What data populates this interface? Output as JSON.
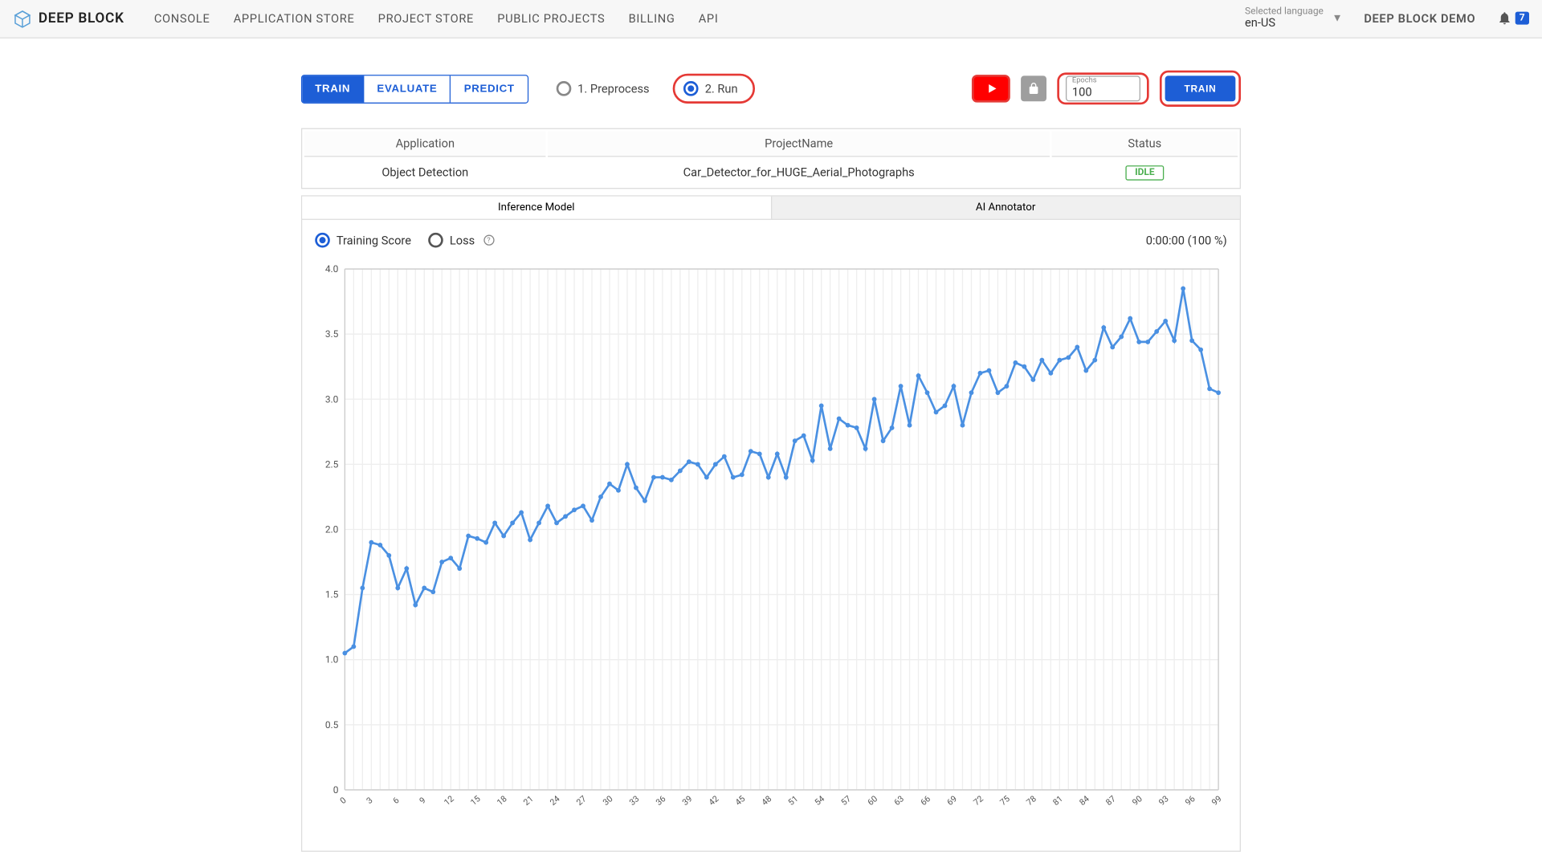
{
  "brand": "DEEP BLOCK",
  "nav": {
    "items": [
      "CONSOLE",
      "APPLICATION STORE",
      "PROJECT STORE",
      "PUBLIC PROJECTS",
      "BILLING",
      "API"
    ],
    "language_label": "Selected language",
    "language_value": "en-US",
    "demo_tag": "DEEP BLOCK DEMO",
    "notification_count": "7"
  },
  "segments": {
    "train": "TRAIN",
    "evaluate": "EVALUATE",
    "predict": "PREDICT",
    "active": "TRAIN"
  },
  "steps": {
    "preprocess": "1. Preprocess",
    "run": "2. Run",
    "selected": "run"
  },
  "epochs": {
    "label": "Epochs",
    "value": "100"
  },
  "train_button": "TRAIN",
  "info": {
    "headers": {
      "application": "Application",
      "project_name": "ProjectName",
      "status": "Status"
    },
    "application": "Object Detection",
    "project_name": "Car_Detector_for_HUGE_Aerial_Photographs",
    "status": "IDLE"
  },
  "model_tabs": {
    "inference": "Inference Model",
    "annotator": "AI Annotator"
  },
  "chart": {
    "series": {
      "training_score": "Training Score",
      "loss": "Loss",
      "selected": "training_score",
      "help": "?"
    },
    "timer": "0:00:00 (100 %)",
    "type": "line",
    "line_color": "#4a90e2",
    "marker_color": "#4a90e2",
    "marker_size": 2.2,
    "line_width": 2,
    "grid_color": "#eeeeee",
    "axis_color": "#cccccc",
    "background_color": "#ffffff",
    "ylim": [
      0,
      4.0
    ],
    "ytick_step": 0.5,
    "ytick_labels": [
      "0",
      "0.5",
      "1.0",
      "1.5",
      "2.0",
      "2.5",
      "3.0",
      "3.5",
      "4.0"
    ],
    "xlim": [
      0,
      99
    ],
    "xtick_step": 3,
    "values": [
      1.05,
      1.1,
      1.55,
      1.9,
      1.88,
      1.8,
      1.55,
      1.7,
      1.42,
      1.55,
      1.52,
      1.75,
      1.78,
      1.7,
      1.95,
      1.93,
      1.9,
      2.05,
      1.95,
      2.05,
      2.13,
      1.92,
      2.05,
      2.18,
      2.05,
      2.1,
      2.15,
      2.18,
      2.07,
      2.25,
      2.35,
      2.3,
      2.5,
      2.32,
      2.22,
      2.4,
      2.4,
      2.38,
      2.45,
      2.52,
      2.5,
      2.4,
      2.5,
      2.56,
      2.4,
      2.42,
      2.6,
      2.58,
      2.4,
      2.58,
      2.4,
      2.68,
      2.72,
      2.53,
      2.95,
      2.62,
      2.85,
      2.8,
      2.78,
      2.62,
      3.0,
      2.68,
      2.78,
      3.1,
      2.8,
      3.18,
      3.05,
      2.9,
      2.95,
      3.1,
      2.8,
      3.05,
      3.2,
      3.22,
      3.05,
      3.1,
      3.28,
      3.25,
      3.15,
      3.3,
      3.2,
      3.3,
      3.32,
      3.4,
      3.22,
      3.3,
      3.55,
      3.4,
      3.48,
      3.62,
      3.44,
      3.44,
      3.52,
      3.6,
      3.45,
      3.85,
      3.45,
      3.38,
      3.08,
      3.05
    ]
  },
  "colors": {
    "primary": "#1d5ed6",
    "highlight": "#e53935",
    "youtube": "#ff0000",
    "status_green": "#4caf50"
  }
}
